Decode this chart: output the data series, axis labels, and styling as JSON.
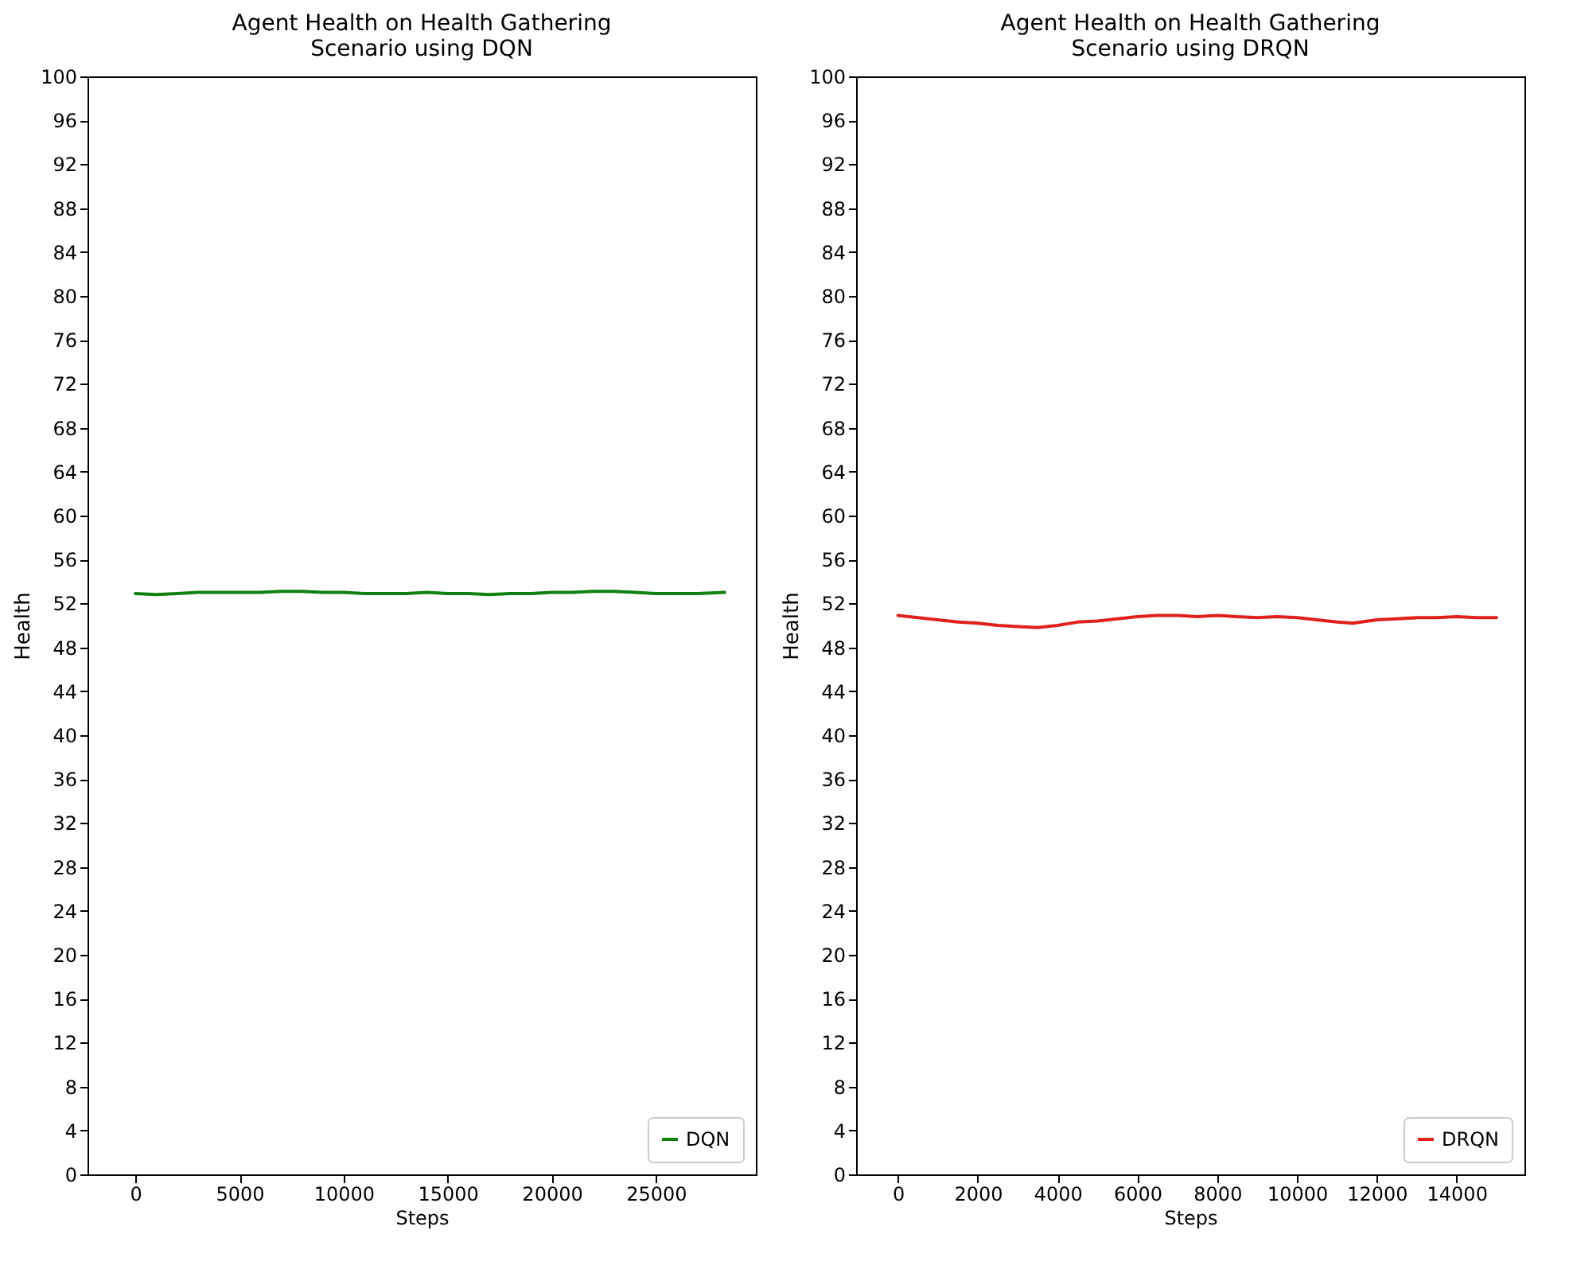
{
  "chart_data": [
    {
      "type": "line",
      "title": "Agent Health on Health Gathering\nScenario using DQN",
      "xlabel": "Steps",
      "ylabel": "Health",
      "xlim": [
        -2300,
        29800
      ],
      "xticks": [
        0,
        5000,
        10000,
        15000,
        20000,
        25000
      ],
      "ylim": [
        0,
        100
      ],
      "yticks": [
        0,
        4,
        8,
        12,
        16,
        20,
        24,
        28,
        32,
        36,
        40,
        44,
        48,
        52,
        56,
        60,
        64,
        68,
        72,
        76,
        80,
        84,
        88,
        92,
        96,
        100
      ],
      "legend": "bottom right",
      "series": [
        {
          "name": "DQN",
          "color": "#108010",
          "x": [
            0,
            1000,
            2000,
            3000,
            4000,
            5000,
            6000,
            7000,
            8000,
            9000,
            10000,
            11000,
            12000,
            13000,
            14000,
            15000,
            16000,
            17000,
            18000,
            19000,
            20000,
            21000,
            22000,
            23000,
            24000,
            25000,
            26000,
            27000,
            28300
          ],
          "values": [
            52.9,
            52.8,
            52.9,
            53.0,
            53.0,
            53.0,
            53.0,
            53.1,
            53.1,
            53.0,
            53.0,
            52.9,
            52.9,
            52.9,
            53.0,
            52.9,
            52.9,
            52.8,
            52.9,
            52.9,
            53.0,
            53.0,
            53.1,
            53.1,
            53.0,
            52.9,
            52.9,
            52.9,
            53.0
          ]
        }
      ]
    },
    {
      "type": "line",
      "title": "Agent Health on Health Gathering\nScenario using DRQN",
      "xlabel": "Steps",
      "ylabel": "Health",
      "xlim": [
        -1050,
        15700
      ],
      "xticks": [
        0,
        2000,
        4000,
        6000,
        8000,
        10000,
        12000,
        14000
      ],
      "ylim": [
        0,
        100
      ],
      "yticks": [
        0,
        4,
        8,
        12,
        16,
        20,
        24,
        28,
        32,
        36,
        40,
        44,
        48,
        52,
        56,
        60,
        64,
        68,
        72,
        76,
        80,
        84,
        88,
        92,
        96,
        100
      ],
      "legend": "bottom right",
      "series": [
        {
          "name": "DRQN",
          "color": "#e0201b",
          "x": [
            0,
            500,
            1000,
            1500,
            2000,
            2500,
            3000,
            3500,
            4000,
            4500,
            5000,
            5500,
            6000,
            6500,
            7000,
            7500,
            8000,
            8500,
            9000,
            9500,
            10000,
            10500,
            11000,
            11400,
            12000,
            12500,
            13000,
            13500,
            14000,
            14500,
            15000
          ],
          "values": [
            50.9,
            50.7,
            50.5,
            50.3,
            50.2,
            50.0,
            49.9,
            49.8,
            50.0,
            50.3,
            50.4,
            50.6,
            50.8,
            50.9,
            50.9,
            50.8,
            50.9,
            50.8,
            50.7,
            50.8,
            50.7,
            50.5,
            50.3,
            50.2,
            50.5,
            50.6,
            50.7,
            50.7,
            50.8,
            50.7,
            50.7
          ]
        }
      ]
    }
  ]
}
